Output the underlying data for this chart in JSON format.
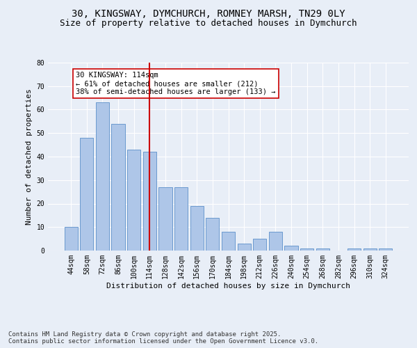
{
  "title_line1": "30, KINGSWAY, DYMCHURCH, ROMNEY MARSH, TN29 0LY",
  "title_line2": "Size of property relative to detached houses in Dymchurch",
  "xlabel": "Distribution of detached houses by size in Dymchurch",
  "ylabel": "Number of detached properties",
  "categories": [
    "44sqm",
    "58sqm",
    "72sqm",
    "86sqm",
    "100sqm",
    "114sqm",
    "128sqm",
    "142sqm",
    "156sqm",
    "170sqm",
    "184sqm",
    "198sqm",
    "212sqm",
    "226sqm",
    "240sqm",
    "254sqm",
    "268sqm",
    "282sqm",
    "296sqm",
    "310sqm",
    "324sqm"
  ],
  "values": [
    10,
    48,
    63,
    54,
    43,
    42,
    27,
    27,
    19,
    14,
    8,
    3,
    5,
    8,
    2,
    1,
    1,
    0,
    1,
    1,
    1
  ],
  "bar_color": "#aec6e8",
  "bar_edge_color": "#5b8fc9",
  "highlight_index": 5,
  "highlight_line_color": "#cc0000",
  "annotation_text": "30 KINGSWAY: 114sqm\n← 61% of detached houses are smaller (212)\n38% of semi-detached houses are larger (133) →",
  "annotation_box_color": "#ffffff",
  "annotation_box_edge_color": "#cc0000",
  "ylim": [
    0,
    80
  ],
  "yticks": [
    0,
    10,
    20,
    30,
    40,
    50,
    60,
    70,
    80
  ],
  "background_color": "#e8eef7",
  "plot_background_color": "#e8eef7",
  "grid_color": "#ffffff",
  "footnote": "Contains HM Land Registry data © Crown copyright and database right 2025.\nContains public sector information licensed under the Open Government Licence v3.0.",
  "title_fontsize": 10,
  "subtitle_fontsize": 9,
  "axis_label_fontsize": 8,
  "tick_fontsize": 7,
  "annotation_fontsize": 7.5,
  "footnote_fontsize": 6.5
}
